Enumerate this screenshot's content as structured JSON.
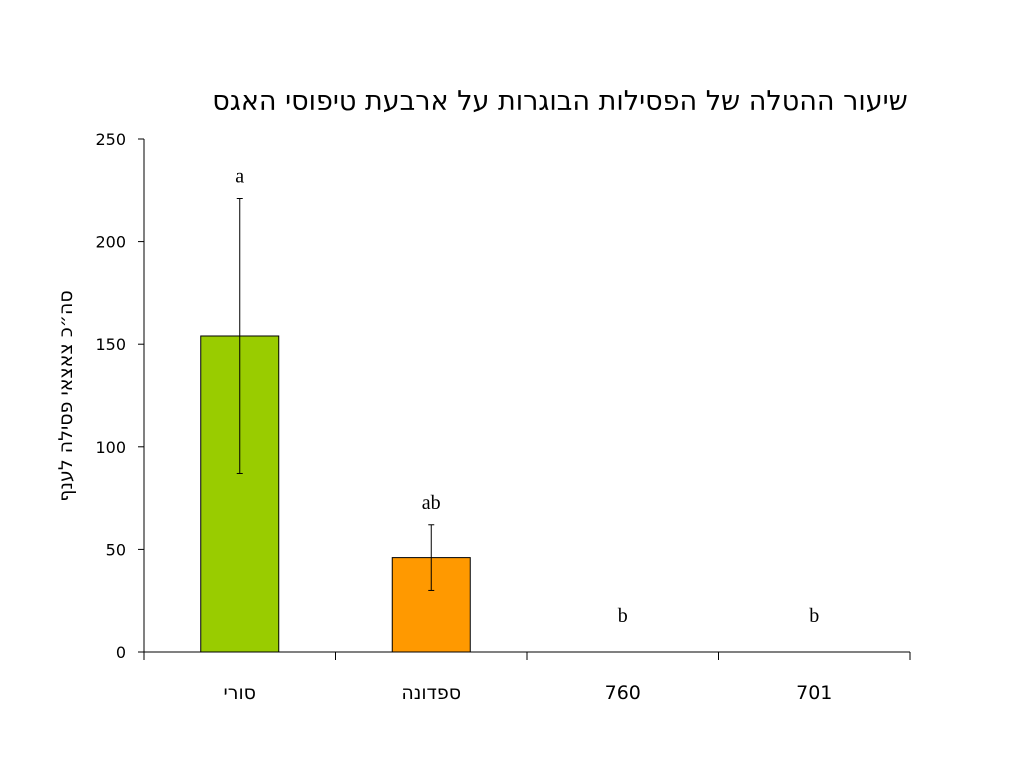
{
  "chart_data": {
    "type": "bar",
    "title": "שיעור ההטלה של הפסילות הבוגרות על ארבעת טיפוסי האגס",
    "xlabel": "",
    "ylabel": "סה״כ צאצאי פסילה לענף",
    "categories": [
      "סורי",
      "ספדונה",
      "760",
      "701"
    ],
    "values": [
      154,
      46,
      0,
      0
    ],
    "error": [
      67,
      16,
      0,
      0
    ],
    "significance_letters": [
      "a",
      "ab",
      "b",
      "b"
    ],
    "colors": [
      "#99cc00",
      "#ff9900",
      "#ffffff",
      "#ffffff"
    ],
    "ylim": [
      0,
      250
    ],
    "yticks": [
      0,
      50,
      100,
      150,
      200,
      250
    ],
    "grid": false,
    "legend": "none"
  }
}
